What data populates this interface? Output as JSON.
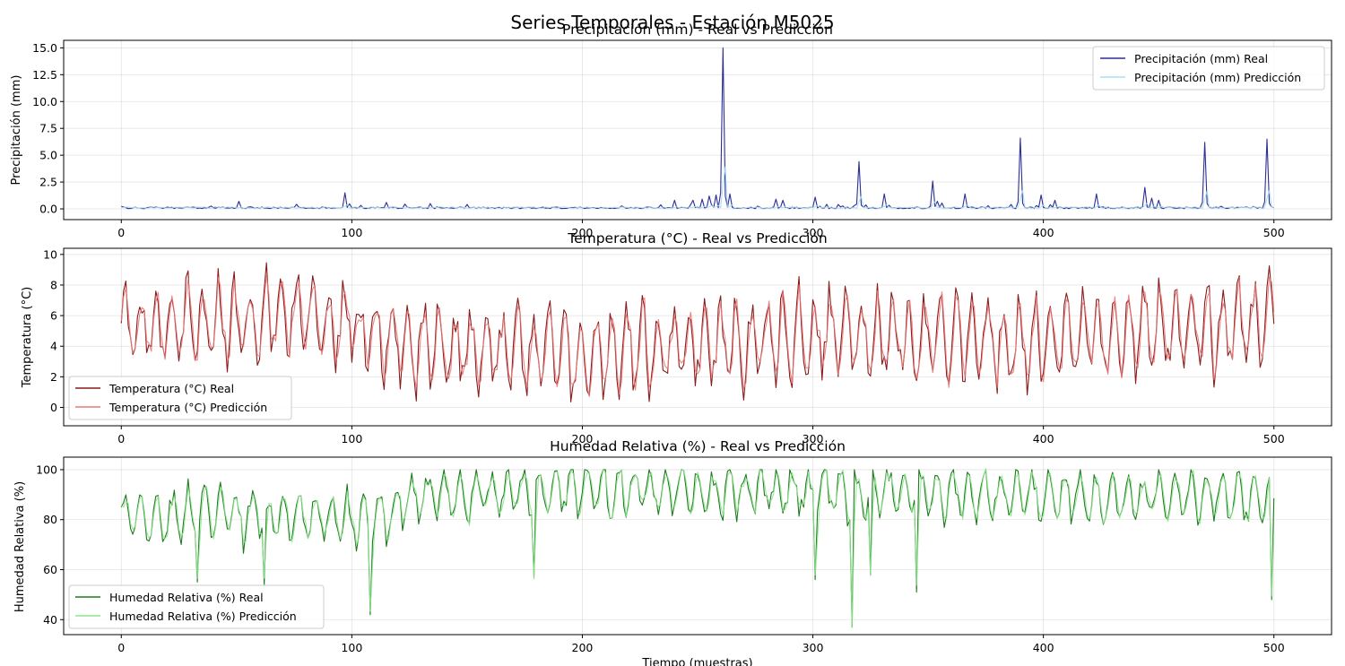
{
  "figure": {
    "suptitle": "Series Temporales - Estación M5025",
    "xlabel": "Tiempo (muestras)"
  },
  "chart_data": [
    {
      "type": "line",
      "title": "Precipitación (mm) - Real vs Predicción",
      "ylabel": "Precipitación (mm)",
      "xlabel": "",
      "xlim": [
        -25,
        525
      ],
      "ylim": [
        -1.0,
        15.7
      ],
      "xticks": [
        0,
        100,
        200,
        300,
        400,
        500
      ],
      "yticks": [
        0.0,
        2.5,
        5.0,
        7.5,
        10.0,
        12.5,
        15.0
      ],
      "ytick_labels": [
        "0.0",
        "2.5",
        "5.0",
        "7.5",
        "10.0",
        "12.5",
        "15.0"
      ],
      "grid": true,
      "legend_position": "upper right",
      "base": 0.1,
      "noise": 0.08,
      "spikes": [
        [
          51,
          0.7
        ],
        [
          97,
          1.5
        ],
        [
          115,
          0.6
        ],
        [
          240,
          0.8
        ],
        [
          248,
          0.8
        ],
        [
          252,
          0.9
        ],
        [
          255,
          1.2
        ],
        [
          258,
          1.3
        ],
        [
          261,
          15.0
        ],
        [
          264,
          1.4
        ],
        [
          284,
          0.9
        ],
        [
          287,
          0.8
        ],
        [
          301,
          1.1
        ],
        [
          320,
          4.4
        ],
        [
          331,
          1.4
        ],
        [
          352,
          2.6
        ],
        [
          354,
          0.7
        ],
        [
          366,
          1.4
        ],
        [
          390,
          6.6
        ],
        [
          399,
          1.3
        ],
        [
          405,
          0.8
        ],
        [
          423,
          1.4
        ],
        [
          444,
          2.0
        ],
        [
          447,
          1.0
        ],
        [
          450,
          0.8
        ],
        [
          470,
          6.2
        ],
        [
          497,
          6.5
        ]
      ],
      "predicted_spike_ratio": 0.75,
      "series": [
        {
          "name": "Precipitación (mm) Real",
          "color": "#2b2e96",
          "role": "real"
        },
        {
          "name": "Precipitación (mm) Predicción",
          "color": "#a9ddf0",
          "role": "pred"
        }
      ]
    },
    {
      "type": "line",
      "title": "Temperatura (°C) - Real vs Predicción",
      "ylabel": "Temperatura (°C)",
      "xlabel": "",
      "xlim": [
        -25,
        525
      ],
      "ylim": [
        -1.2,
        10.4
      ],
      "xticks": [
        0,
        100,
        200,
        300,
        400,
        500
      ],
      "yticks": [
        0,
        2,
        4,
        6,
        8,
        10
      ],
      "ytick_labels": [
        "0",
        "2",
        "4",
        "6",
        "8",
        "10"
      ],
      "grid": true,
      "legend_position": "lower left",
      "start_value": 5.5,
      "trend_knots": [
        [
          0,
          5.0
        ],
        [
          40,
          5.5
        ],
        [
          80,
          6.5
        ],
        [
          110,
          4.8
        ],
        [
          150,
          3.8
        ],
        [
          200,
          3.6
        ],
        [
          250,
          4.0
        ],
        [
          300,
          4.6
        ],
        [
          350,
          4.5
        ],
        [
          400,
          4.2
        ],
        [
          450,
          5.0
        ],
        [
          500,
          6.0
        ]
      ],
      "cycle_period": 6.8,
      "amplitude": 2.4,
      "noise": 1.0,
      "clip": [
        -0.6,
        10.0
      ],
      "series": [
        {
          "name": "Temperatura (°C) Real",
          "color": "#8b1a1a",
          "role": "real"
        },
        {
          "name": "Temperatura (°C) Predicción",
          "color": "#e87a7a",
          "role": "pred"
        }
      ]
    },
    {
      "type": "line",
      "title": "Humedad Relativa (%) - Real vs Predicción",
      "ylabel": "Humedad Relativa (%)",
      "xlabel": "Tiempo (muestras)",
      "xlim": [
        -25,
        525
      ],
      "ylim": [
        34,
        105
      ],
      "xticks": [
        0,
        100,
        200,
        300,
        400,
        500
      ],
      "yticks": [
        40,
        60,
        80,
        100
      ],
      "ytick_labels": [
        "40",
        "60",
        "80",
        "100"
      ],
      "grid": true,
      "legend_position": "lower left",
      "start_value": 85,
      "trend_knots": [
        [
          0,
          82
        ],
        [
          60,
          82
        ],
        [
          110,
          80
        ],
        [
          130,
          90
        ],
        [
          200,
          92
        ],
        [
          300,
          91
        ],
        [
          400,
          90
        ],
        [
          500,
          88
        ]
      ],
      "cycle_period": 6.9,
      "amplitude": 9,
      "noise": 3.5,
      "clip": [
        45,
        100
      ],
      "dips": [
        [
          33,
          55
        ],
        [
          62,
          54
        ],
        [
          108,
          42
        ],
        [
          179,
          57
        ],
        [
          301,
          56
        ],
        [
          317,
          37
        ],
        [
          325,
          58
        ],
        [
          345,
          51
        ],
        [
          499,
          48
        ]
      ],
      "series": [
        {
          "name": "Humedad Relativa (%) Real",
          "color": "#1f7a1f",
          "role": "real"
        },
        {
          "name": "Humedad Relativa (%) Predicción",
          "color": "#8fe68f",
          "role": "pred"
        }
      ]
    }
  ]
}
